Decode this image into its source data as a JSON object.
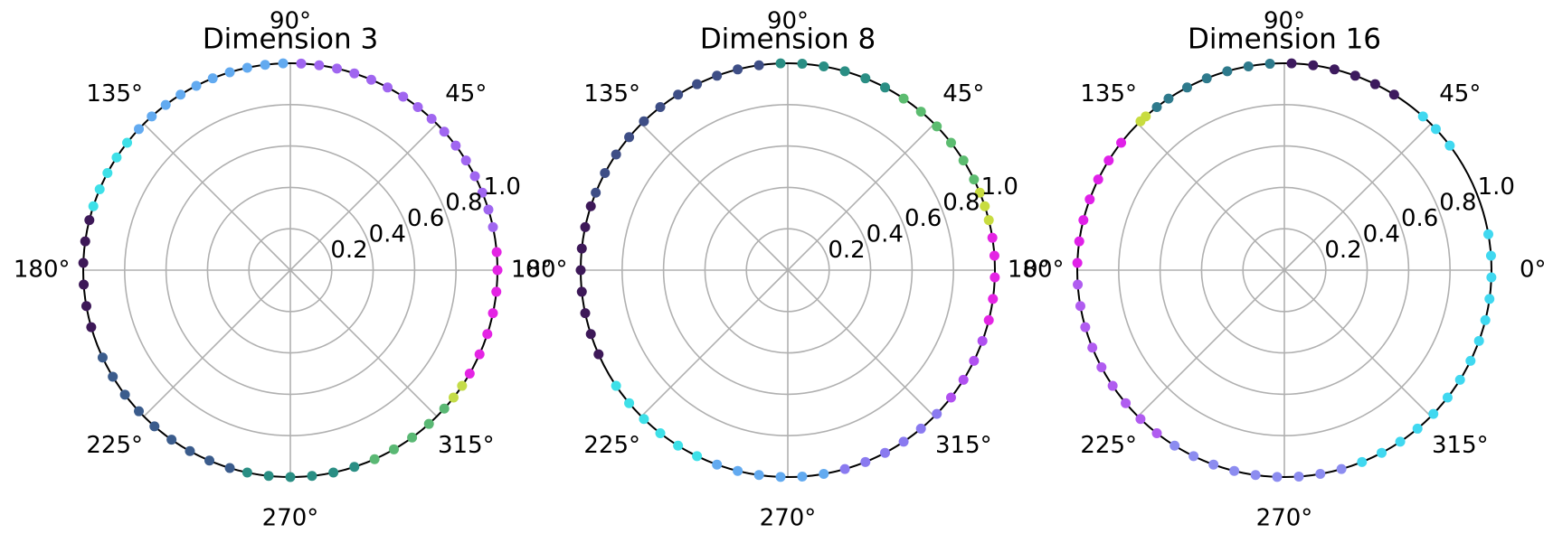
{
  "chart_data": [
    {
      "type": "scatter",
      "polar": true,
      "title": "Dimension 3",
      "grid": true,
      "xlim": [
        0,
        360
      ],
      "ylim": [
        0,
        1
      ],
      "xticks": [
        {
          "value": 0,
          "label": "0°"
        },
        {
          "value": 45,
          "label": "45°"
        },
        {
          "value": 90,
          "label": "90°"
        },
        {
          "value": 135,
          "label": "135°"
        },
        {
          "value": 180,
          "label": "180°"
        },
        {
          "value": 225,
          "label": "225°"
        },
        {
          "value": 270,
          "label": "270°"
        },
        {
          "value": 315,
          "label": "315°"
        }
      ],
      "yticks": [
        0.2,
        0.4,
        0.6,
        0.8,
        {
          "value": 1,
          "label": "1.0"
        }
      ],
      "series": [
        {
          "color": "#a066f0",
          "x": [
            12,
            17,
            22,
            27,
            32,
            37,
            42,
            47,
            52,
            57,
            62,
            67,
            72,
            77,
            82,
            87
          ],
          "values": [
            1,
            1,
            1,
            1,
            1,
            1,
            1,
            1,
            1,
            1,
            1,
            1,
            1,
            1,
            1,
            1
          ]
        },
        {
          "color": "#62aaf0",
          "x": [
            92,
            97,
            102,
            107,
            112,
            117,
            122,
            127,
            132,
            137
          ],
          "values": [
            1,
            1,
            1,
            1,
            1,
            1,
            1,
            1,
            1,
            1
          ]
        },
        {
          "color": "#3ee0e8",
          "x": [
            142,
            147,
            152,
            157,
            162
          ],
          "values": [
            1,
            1,
            1,
            1,
            1
          ]
        },
        {
          "color": "#3d1858",
          "x": [
            166,
            172,
            178,
            184,
            190,
            196
          ],
          "values": [
            1,
            1,
            1,
            1,
            1,
            1
          ]
        },
        {
          "color": "#3b5c8c",
          "x": [
            205,
            211,
            217,
            223,
            229,
            235,
            241,
            247,
            253
          ],
          "values": [
            1,
            1,
            1,
            1,
            1,
            1,
            1,
            1,
            1
          ]
        },
        {
          "color": "#2a8e84",
          "x": [
            258,
            264,
            270,
            276,
            282,
            288
          ],
          "values": [
            1,
            1,
            1,
            1,
            1,
            1
          ]
        },
        {
          "color": "#5ab874",
          "x": [
            294,
            300,
            306,
            312,
            318
          ],
          "values": [
            1,
            1,
            1,
            1,
            1
          ]
        },
        {
          "color": "#c4dc48",
          "x": [
            322,
            326
          ],
          "values": [
            1,
            1
          ]
        },
        {
          "color": "#e424e4",
          "x": [
            330,
            336,
            342,
            348,
            354,
            0,
            5
          ],
          "values": [
            1,
            1,
            1,
            1,
            1,
            1,
            1
          ]
        }
      ]
    },
    {
      "type": "scatter",
      "polar": true,
      "title": "Dimension 8",
      "grid": true,
      "xlim": [
        0,
        360
      ],
      "ylim": [
        0,
        1
      ],
      "xticks": [
        {
          "value": 0,
          "label": "0°"
        },
        {
          "value": 45,
          "label": "45°"
        },
        {
          "value": 90,
          "label": "90°"
        },
        {
          "value": 135,
          "label": "135°"
        },
        {
          "value": 180,
          "label": "180°"
        },
        {
          "value": 225,
          "label": "225°"
        },
        {
          "value": 270,
          "label": "270°"
        },
        {
          "value": 315,
          "label": "315°"
        }
      ],
      "yticks": [
        0.2,
        0.4,
        0.6,
        0.8,
        {
          "value": 1,
          "label": "1.0"
        }
      ],
      "series": [
        {
          "color": "#c8dc40",
          "x": [
            14,
            18,
            22
          ],
          "values": [
            1,
            1,
            1
          ]
        },
        {
          "color": "#5cbc70",
          "x": [
            26,
            32,
            38,
            44,
            50,
            56
          ],
          "values": [
            1,
            1,
            1,
            1,
            1,
            1
          ]
        },
        {
          "color": "#2a8e84",
          "x": [
            62,
            68,
            74,
            80,
            86,
            92
          ],
          "values": [
            1,
            1,
            1,
            1,
            1,
            1
          ]
        },
        {
          "color": "#3e4e86",
          "x": [
            98,
            104,
            110,
            116,
            122,
            128,
            134,
            140,
            146,
            152,
            158
          ],
          "values": [
            1,
            1,
            1,
            1,
            1,
            1,
            1,
            1,
            1,
            1,
            1
          ]
        },
        {
          "color": "#3d1858",
          "x": [
            162,
            168,
            174,
            180,
            186,
            192,
            198,
            204
          ],
          "values": [
            1,
            1,
            1,
            1,
            1,
            1,
            1,
            1
          ]
        },
        {
          "color": "#3ee0e8",
          "x": [
            214,
            220,
            226,
            232,
            238,
            244
          ],
          "values": [
            1,
            1,
            1,
            1,
            1,
            1
          ]
        },
        {
          "color": "#62aaf0",
          "x": [
            250,
            256,
            262,
            268,
            274,
            280
          ],
          "values": [
            1,
            1,
            1,
            1,
            1,
            1
          ]
        },
        {
          "color": "#8a7af0",
          "x": [
            286,
            292,
            298,
            304,
            310,
            316
          ],
          "values": [
            1,
            1,
            1,
            1,
            1,
            1
          ]
        },
        {
          "color": "#b050f0",
          "x": [
            322,
            328,
            334,
            340
          ],
          "values": [
            1,
            1,
            1,
            1
          ]
        },
        {
          "color": "#e424e4",
          "x": [
            346,
            352,
            358,
            4,
            9
          ],
          "values": [
            1,
            1,
            1,
            1,
            1
          ]
        }
      ]
    },
    {
      "type": "scatter",
      "polar": true,
      "title": "Dimension 16",
      "grid": true,
      "xlim": [
        0,
        360
      ],
      "ylim": [
        0,
        1
      ],
      "xticks": [
        {
          "value": 0,
          "label": "0°"
        },
        {
          "value": 45,
          "label": "45°"
        },
        {
          "value": 90,
          "label": "90°"
        },
        {
          "value": 135,
          "label": "135°"
        },
        {
          "value": 180,
          "label": "180°"
        },
        {
          "value": 225,
          "label": "225°"
        },
        {
          "value": 270,
          "label": "270°"
        },
        {
          "value": 315,
          "label": "315°"
        }
      ],
      "yticks": [
        0.2,
        0.4,
        0.6,
        0.8,
        {
          "value": 1,
          "label": "1.0"
        }
      ],
      "series": [
        {
          "color": "#3d1a5e",
          "x": [
            58,
            64,
            70,
            76,
            82,
            88
          ],
          "values": [
            1,
            1,
            1,
            1,
            1,
            1
          ]
        },
        {
          "color": "#2e7a8c",
          "x": [
            94,
            100,
            106,
            112,
            118,
            124,
            128
          ],
          "values": [
            1,
            1,
            1,
            1,
            1,
            1,
            1
          ]
        },
        {
          "color": "#c8dc40",
          "x": [
            132,
            134
          ],
          "values": [
            1,
            1
          ]
        },
        {
          "color": "#e020e8",
          "x": [
            142,
            148,
            154,
            160,
            166,
            172,
            178
          ],
          "values": [
            1,
            1,
            1,
            1,
            1,
            1,
            1
          ]
        },
        {
          "color": "#b05cf0",
          "x": [
            184,
            190,
            196,
            202,
            208,
            214,
            220,
            226,
            232
          ],
          "values": [
            1,
            1,
            1,
            1,
            1,
            1,
            1,
            1,
            1
          ]
        },
        {
          "color": "#8c8cf0",
          "x": [
            238,
            244,
            250,
            256,
            262,
            268,
            274,
            280,
            286
          ],
          "values": [
            1,
            1,
            1,
            1,
            1,
            1,
            1,
            1,
            1
          ]
        },
        {
          "color": "#40d8f0",
          "x": [
            292,
            298,
            304,
            310,
            316,
            322,
            328,
            334,
            340,
            346,
            352,
            358,
            4,
            10,
            37,
            43,
            48
          ],
          "values": [
            1,
            1,
            1,
            1,
            1,
            1,
            1,
            1,
            1,
            1,
            1,
            1,
            1,
            1,
            1,
            1,
            1
          ]
        }
      ]
    }
  ]
}
